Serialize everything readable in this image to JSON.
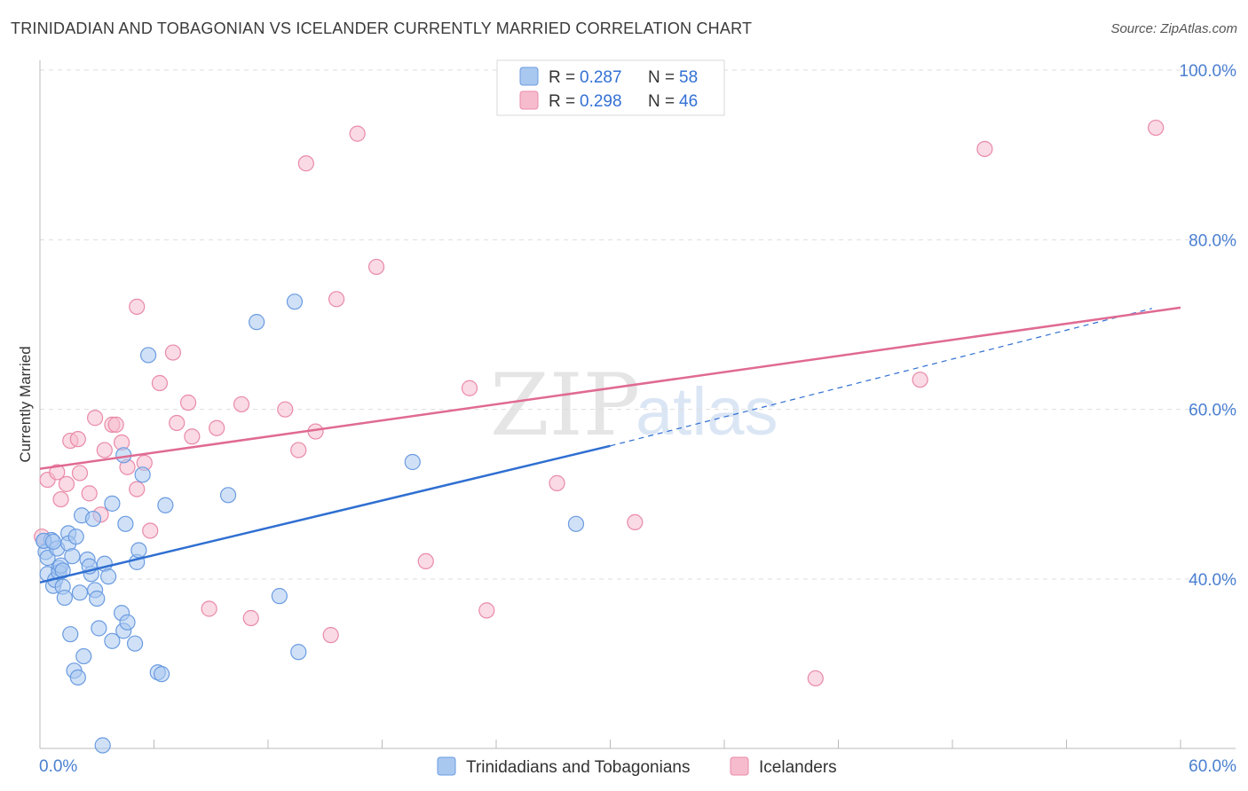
{
  "header": {
    "title": "TRINIDADIAN AND TOBAGONIAN VS ICELANDER CURRENTLY MARRIED CORRELATION CHART",
    "source": "Source: ZipAtlas.com"
  },
  "watermark": {
    "part1": "ZIP",
    "part2": "atlas"
  },
  "colors": {
    "blue_fill": "#a9c8f0",
    "blue_stroke": "#6a9be0",
    "blue_line": "#2f6fd1",
    "pink_fill": "#f6bccd",
    "pink_stroke": "#e98aa8",
    "pink_line": "#e06a92",
    "tick_text": "#4a7fd1"
  },
  "legend": {
    "rows": [
      {
        "r_label": "R = ",
        "r_value": "0.287",
        "n_label": "N = ",
        "n_value": "58",
        "color": "blue"
      },
      {
        "r_label": "R = ",
        "r_value": "0.298",
        "n_label": "N = ",
        "n_value": "46",
        "color": "pink"
      }
    ]
  },
  "bottom_legend": [
    {
      "label": "Trinidadians and Tobagonians",
      "color": "blue"
    },
    {
      "label": "Icelanders",
      "color": "pink"
    }
  ],
  "chart_data": {
    "type": "scatter",
    "title": "TRINIDADIAN AND TOBAGONIAN VS ICELANDER CURRENTLY MARRIED CORRELATION CHART",
    "xlabel": "",
    "ylabel": "Currently Married",
    "xlim": [
      0,
      60
    ],
    "ylim": [
      20,
      102
    ],
    "x_tick_labels": [
      "0.0%",
      "60.0%"
    ],
    "y_ticks": [
      40,
      60,
      80,
      100
    ],
    "y_tick_labels": [
      "40.0%",
      "60.0%",
      "80.0%",
      "100.0%"
    ],
    "grid": true,
    "legend_position": "top-center",
    "series": [
      {
        "name": "Trinidadians and Tobagonians",
        "color": "blue",
        "points": [
          [
            0.2,
            44.5
          ],
          [
            0.3,
            43.2
          ],
          [
            0.4,
            42.5
          ],
          [
            0.4,
            40.6
          ],
          [
            0.6,
            44.6
          ],
          [
            0.7,
            39.2
          ],
          [
            0.8,
            39.9
          ],
          [
            0.9,
            43.6
          ],
          [
            1.0,
            41.3
          ],
          [
            1.0,
            40.8
          ],
          [
            1.1,
            41.6
          ],
          [
            1.2,
            39.1
          ],
          [
            1.3,
            37.8
          ],
          [
            1.5,
            45.4
          ],
          [
            1.5,
            44.2
          ],
          [
            1.6,
            33.5
          ],
          [
            1.7,
            42.7
          ],
          [
            1.8,
            29.2
          ],
          [
            1.9,
            45.0
          ],
          [
            2.0,
            28.4
          ],
          [
            2.1,
            38.4
          ],
          [
            2.2,
            47.5
          ],
          [
            2.3,
            30.9
          ],
          [
            2.5,
            42.3
          ],
          [
            2.7,
            40.6
          ],
          [
            2.8,
            47.1
          ],
          [
            2.9,
            38.7
          ],
          [
            3.0,
            37.7
          ],
          [
            3.1,
            34.2
          ],
          [
            3.4,
            41.8
          ],
          [
            3.6,
            40.3
          ],
          [
            3.8,
            32.7
          ],
          [
            4.3,
            36.0
          ],
          [
            4.4,
            33.9
          ],
          [
            4.5,
            46.5
          ],
          [
            4.6,
            34.9
          ],
          [
            5.0,
            32.4
          ],
          [
            5.1,
            42.0
          ],
          [
            5.2,
            43.4
          ],
          [
            5.4,
            52.3
          ],
          [
            6.2,
            29.0
          ],
          [
            6.4,
            28.8
          ],
          [
            6.6,
            48.7
          ],
          [
            9.9,
            49.9
          ],
          [
            11.4,
            70.3
          ],
          [
            12.6,
            38.0
          ],
          [
            13.4,
            72.7
          ],
          [
            13.6,
            31.4
          ],
          [
            19.6,
            53.8
          ],
          [
            28.2,
            46.5
          ],
          [
            0.2,
            44.5
          ],
          [
            5.7,
            66.4
          ],
          [
            4.4,
            54.6
          ],
          [
            3.8,
            48.9
          ],
          [
            2.6,
            41.5
          ],
          [
            3.3,
            20.4
          ],
          [
            1.2,
            41.0
          ],
          [
            0.7,
            44.4
          ]
        ],
        "trend": {
          "x0": 0,
          "y0": 39.6,
          "x1": 30,
          "y1": 55.7,
          "dashed_to": {
            "x": 58.5,
            "y": 71.9
          }
        }
      },
      {
        "name": "Icelanders",
        "color": "pink",
        "points": [
          [
            0.1,
            45.0
          ],
          [
            0.4,
            51.7
          ],
          [
            0.9,
            52.6
          ],
          [
            1.1,
            49.4
          ],
          [
            1.4,
            51.2
          ],
          [
            1.6,
            56.3
          ],
          [
            2.0,
            56.5
          ],
          [
            2.1,
            52.5
          ],
          [
            2.6,
            50.1
          ],
          [
            2.9,
            59.0
          ],
          [
            3.2,
            47.6
          ],
          [
            3.4,
            55.2
          ],
          [
            3.8,
            58.2
          ],
          [
            4.0,
            58.2
          ],
          [
            4.3,
            56.1
          ],
          [
            4.6,
            53.2
          ],
          [
            5.1,
            50.6
          ],
          [
            5.1,
            72.1
          ],
          [
            5.5,
            53.7
          ],
          [
            5.8,
            45.7
          ],
          [
            6.3,
            63.1
          ],
          [
            7.0,
            66.7
          ],
          [
            7.2,
            58.4
          ],
          [
            7.8,
            60.8
          ],
          [
            8.0,
            56.8
          ],
          [
            8.9,
            36.5
          ],
          [
            9.3,
            57.8
          ],
          [
            10.6,
            60.6
          ],
          [
            11.1,
            35.4
          ],
          [
            12.9,
            60.0
          ],
          [
            13.6,
            55.2
          ],
          [
            14.0,
            89.0
          ],
          [
            14.5,
            57.4
          ],
          [
            15.3,
            33.4
          ],
          [
            15.6,
            73.0
          ],
          [
            16.7,
            92.5
          ],
          [
            17.7,
            76.8
          ],
          [
            20.3,
            42.1
          ],
          [
            22.6,
            62.5
          ],
          [
            23.5,
            36.3
          ],
          [
            27.2,
            51.3
          ],
          [
            31.3,
            46.7
          ],
          [
            40.8,
            28.3
          ],
          [
            46.3,
            63.5
          ],
          [
            49.7,
            90.7
          ],
          [
            58.7,
            93.2
          ]
        ],
        "trend": {
          "x0": 0,
          "y0": 53.0,
          "x1": 60,
          "y1": 72.0
        }
      }
    ]
  }
}
